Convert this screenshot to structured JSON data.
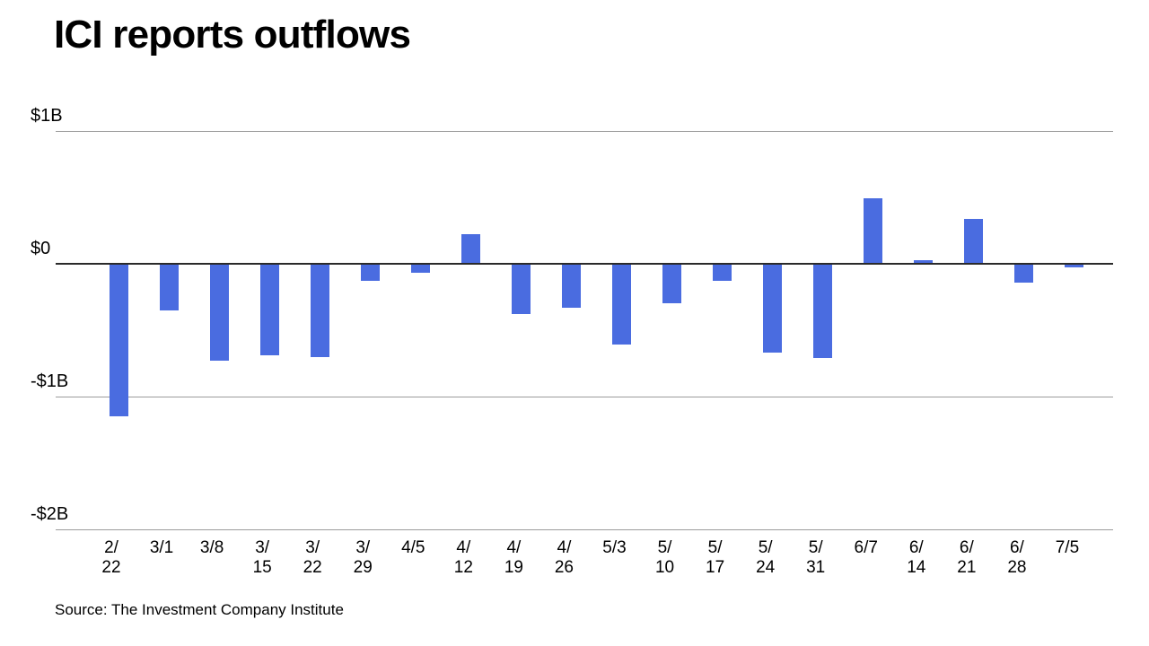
{
  "source_note": "Source: The Investment Company Institute",
  "colors": {
    "bar": "#4a6ce0",
    "gridline": "#9c9c9c",
    "zero_line": "#2a2a2a",
    "text": "#000000",
    "background": "#ffffff"
  },
  "chart_data": {
    "type": "bar",
    "title": "ICI reports outflows",
    "unit": "billions of USD (weekly fund flows)",
    "categories": [
      "2/22",
      "3/1",
      "3/8",
      "3/15",
      "3/22",
      "3/29",
      "4/5",
      "4/12",
      "4/19",
      "4/26",
      "5/3",
      "5/10",
      "5/17",
      "5/24",
      "5/31",
      "6/7",
      "6/14",
      "6/21",
      "6/28",
      "7/5"
    ],
    "values": [
      -1.15,
      -0.35,
      -0.73,
      -0.69,
      -0.7,
      -0.13,
      -0.07,
      0.22,
      -0.38,
      -0.33,
      -0.61,
      -0.3,
      -0.13,
      -0.67,
      -0.71,
      0.49,
      0.03,
      0.34,
      -0.14,
      -0.03
    ],
    "y_ticks": [
      {
        "label": "$1B",
        "value": 1
      },
      {
        "label": "$0",
        "value": 0
      },
      {
        "label": "-$1B",
        "value": -1
      },
      {
        "label": "-$2B",
        "value": -2
      }
    ],
    "ylim": [
      -2.15,
      1.0
    ],
    "xlabel": "",
    "ylabel": "",
    "grid": true,
    "legend": "none"
  }
}
